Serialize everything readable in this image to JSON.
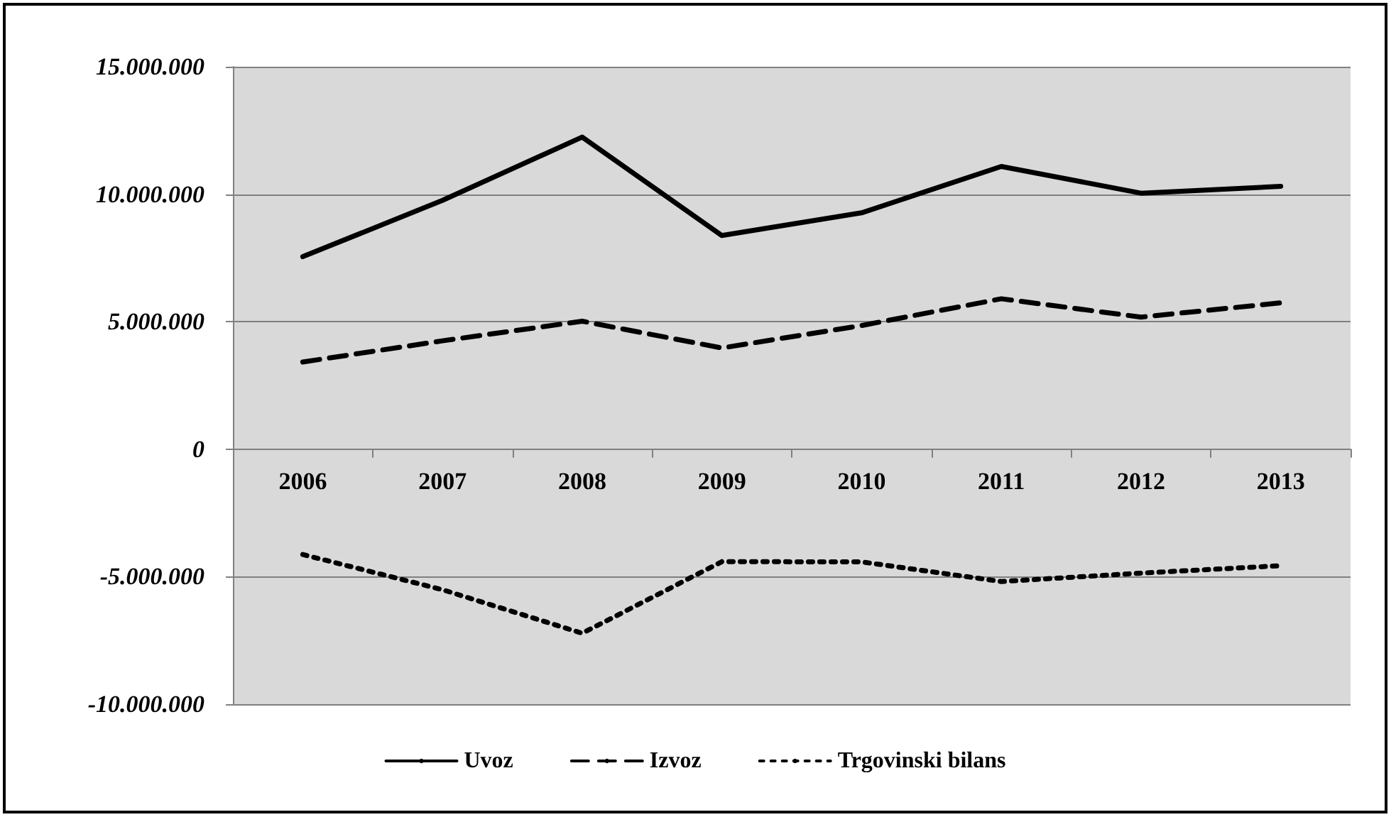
{
  "chart_data": {
    "type": "line",
    "categories": [
      "2006",
      "2007",
      "2008",
      "2009",
      "2010",
      "2011",
      "2012",
      "2013"
    ],
    "series": [
      {
        "name": "Uvoz",
        "color": "#000000",
        "line_style": "solid",
        "values": [
          7550000,
          9760000,
          12240000,
          8380000,
          9270000,
          11090000,
          10040000,
          10310000
        ]
      },
      {
        "name": "Izvoz",
        "color": "#000000",
        "line_style": "dashed",
        "values": [
          3420000,
          4250000,
          5020000,
          3970000,
          4850000,
          5900000,
          5180000,
          5740000
        ]
      },
      {
        "name": "Trgovinski bilans",
        "color": "#000000",
        "line_style": "dotted",
        "values": [
          -4130000,
          -5510000,
          -7220000,
          -4410000,
          -4420000,
          -5190000,
          -4860000,
          -4570000
        ]
      }
    ],
    "ylim": [
      -10000000,
      15000000
    ],
    "yticks": [
      {
        "value": -10000000,
        "label": "-10.000.000"
      },
      {
        "value": -5000000,
        "label": "-5.000.000"
      },
      0,
      {
        "value": 5000000,
        "label": "5.000.000"
      },
      {
        "value": 10000000,
        "label": "10.000.000"
      },
      {
        "value": 15000000,
        "label": "15.000.000"
      }
    ],
    "grid": "y",
    "legend": "bottom",
    "marker": "none"
  }
}
